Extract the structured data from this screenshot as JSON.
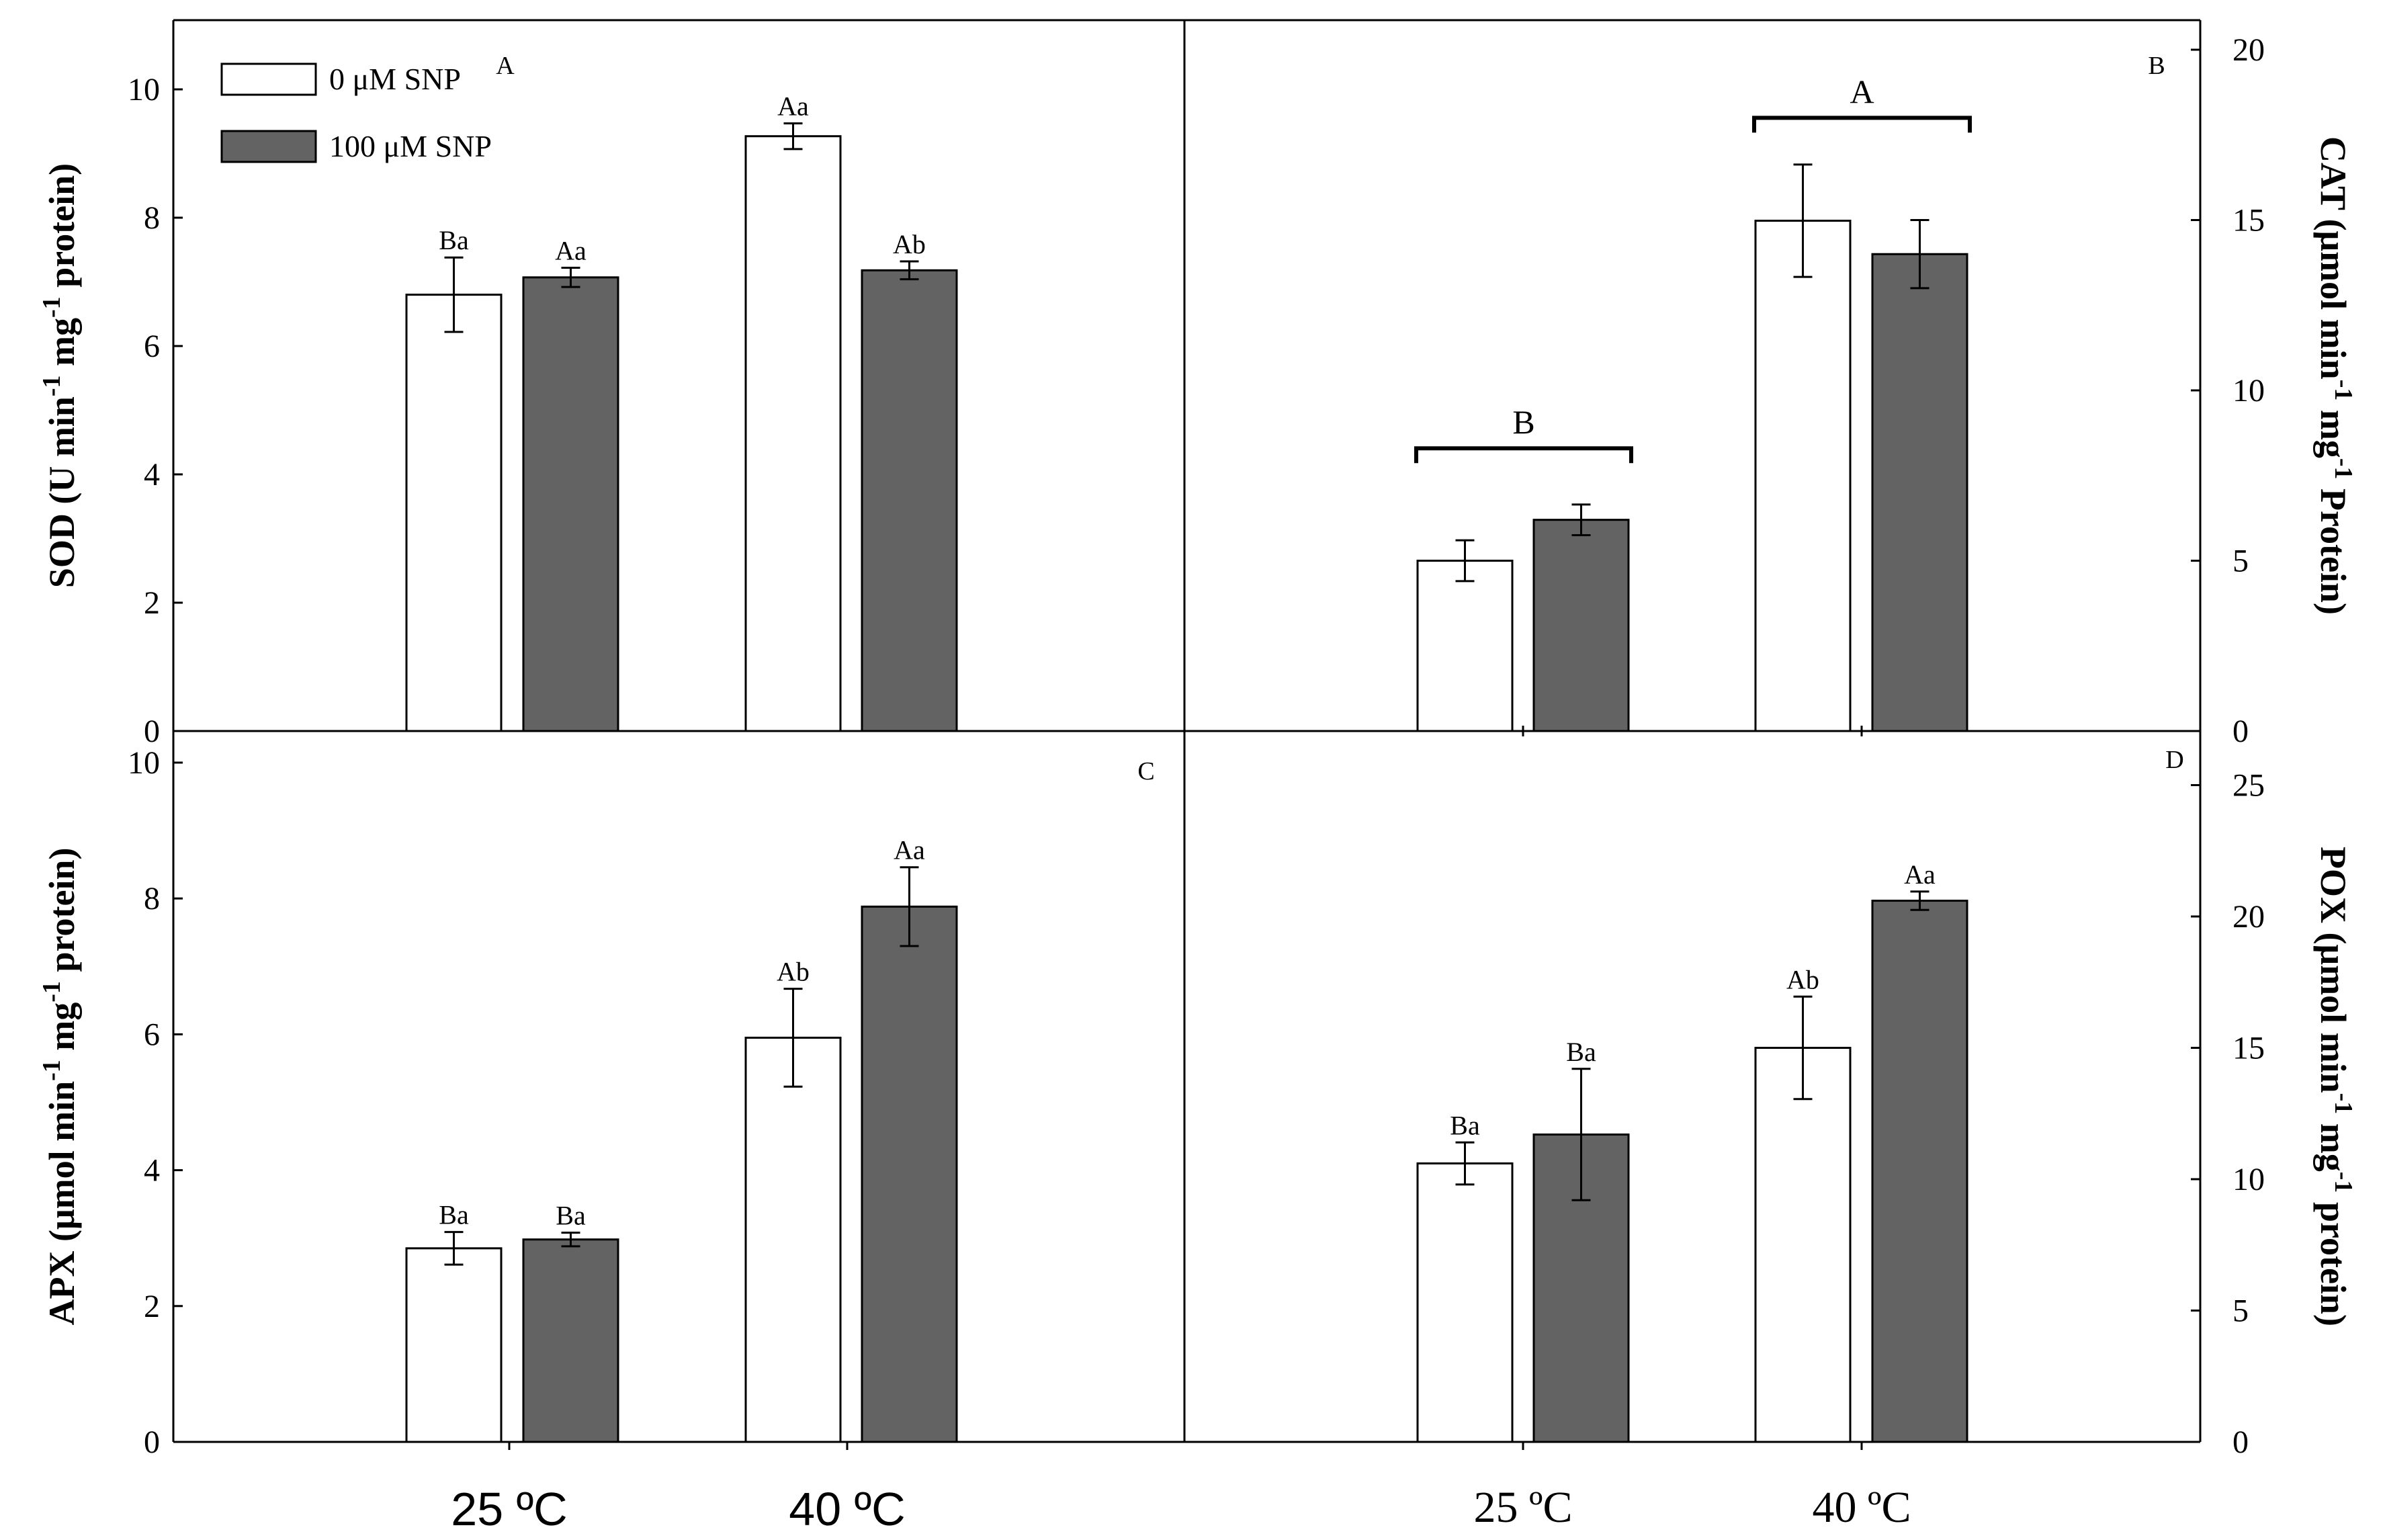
{
  "legend": [
    {
      "label": "0 μM SNP",
      "color": "#ffffff"
    },
    {
      "label": "100 μM SNP",
      "color": "#636363"
    }
  ],
  "chart_data": [
    {
      "type": "bar",
      "panel": "A",
      "ylabel": "SOD (U min-1 mg-1 protein)",
      "ylabel_parts": [
        "SOD (U min",
        "-1",
        " mg",
        "-1",
        " protein)"
      ],
      "ylim": [
        0,
        11
      ],
      "yticks": [
        0,
        2,
        4,
        6,
        8,
        10
      ],
      "yaxis_side": "left",
      "categories": [
        "25 ºC",
        "40 ºC"
      ],
      "series": [
        {
          "name": "0 μM SNP",
          "values": [
            6.8,
            9.27
          ],
          "errors": [
            0.58,
            0.2
          ],
          "labels": [
            "Ba",
            "Aa"
          ]
        },
        {
          "name": "100 μM SNP",
          "values": [
            7.07,
            7.18
          ],
          "errors": [
            0.15,
            0.14
          ],
          "labels": [
            "Aa",
            "Ab"
          ]
        }
      ],
      "brackets": []
    },
    {
      "type": "bar",
      "panel": "B",
      "ylabel": "CAT (μmol min-1 mg-1 Protein)",
      "ylabel_parts": [
        "CAT (μmol min",
        "-1",
        " mg",
        "-1",
        " Protein)"
      ],
      "ylim": [
        0,
        21
      ],
      "yticks": [
        0,
        5,
        10,
        15,
        20
      ],
      "yaxis_side": "right",
      "categories": [
        "25 ºC",
        "40 ºC"
      ],
      "series": [
        {
          "name": "0 μM SNP",
          "values": [
            5.0,
            14.98
          ],
          "errors": [
            0.6,
            1.65
          ],
          "labels": [
            "",
            ""
          ]
        },
        {
          "name": "100 μM SNP",
          "values": [
            6.2,
            14.0
          ],
          "errors": [
            0.45,
            1.0
          ],
          "labels": [
            "",
            ""
          ]
        }
      ],
      "brackets": [
        {
          "label": "B",
          "value": 8.3
        },
        {
          "label": "A",
          "value": 18.0
        }
      ]
    },
    {
      "type": "bar",
      "panel": "C",
      "ylabel": "APX (μmol min-1 mg-1 protein)",
      "ylabel_parts": [
        "APX (μmol min",
        "-1",
        " mg",
        "-1",
        " protein)"
      ],
      "ylim": [
        0,
        10.5
      ],
      "yticks": [
        0,
        2,
        4,
        6,
        8,
        10
      ],
      "yaxis_side": "left",
      "categories": [
        "25 ºC",
        "40 ºC"
      ],
      "series": [
        {
          "name": "0 μM SNP",
          "values": [
            2.85,
            5.95
          ],
          "errors": [
            0.24,
            0.72
          ],
          "labels": [
            "Ba",
            "Ab"
          ]
        },
        {
          "name": "100 μM SNP",
          "values": [
            2.98,
            7.88
          ],
          "errors": [
            0.1,
            0.58
          ],
          "labels": [
            "Ba",
            "Aa"
          ]
        }
      ],
      "brackets": []
    },
    {
      "type": "bar",
      "panel": "D",
      "ylabel": "POX (μmol min-1 mg-1 protein)",
      "ylabel_parts": [
        "POX (μmol min",
        "-1",
        " mg",
        "-1",
        " protein)"
      ],
      "ylim": [
        0,
        26.4
      ],
      "yticks": [
        0,
        5,
        10,
        15,
        20,
        25
      ],
      "yaxis_side": "right",
      "categories": [
        "25 ºC",
        "40 ºC"
      ],
      "series": [
        {
          "name": "0 μM SNP",
          "values": [
            10.6,
            15.0
          ],
          "errors": [
            0.8,
            1.95
          ],
          "labels": [
            "Ba",
            "Ab"
          ]
        },
        {
          "name": "100 μM SNP",
          "values": [
            11.7,
            20.6
          ],
          "errors": [
            2.5,
            0.35
          ],
          "labels": [
            "Ba",
            "Aa"
          ]
        }
      ],
      "brackets": []
    }
  ],
  "x_group_labels_left": [
    "25 ºC",
    "40 ºC"
  ],
  "x_group_labels_right": [
    "25 ºC",
    "40 ºC"
  ]
}
